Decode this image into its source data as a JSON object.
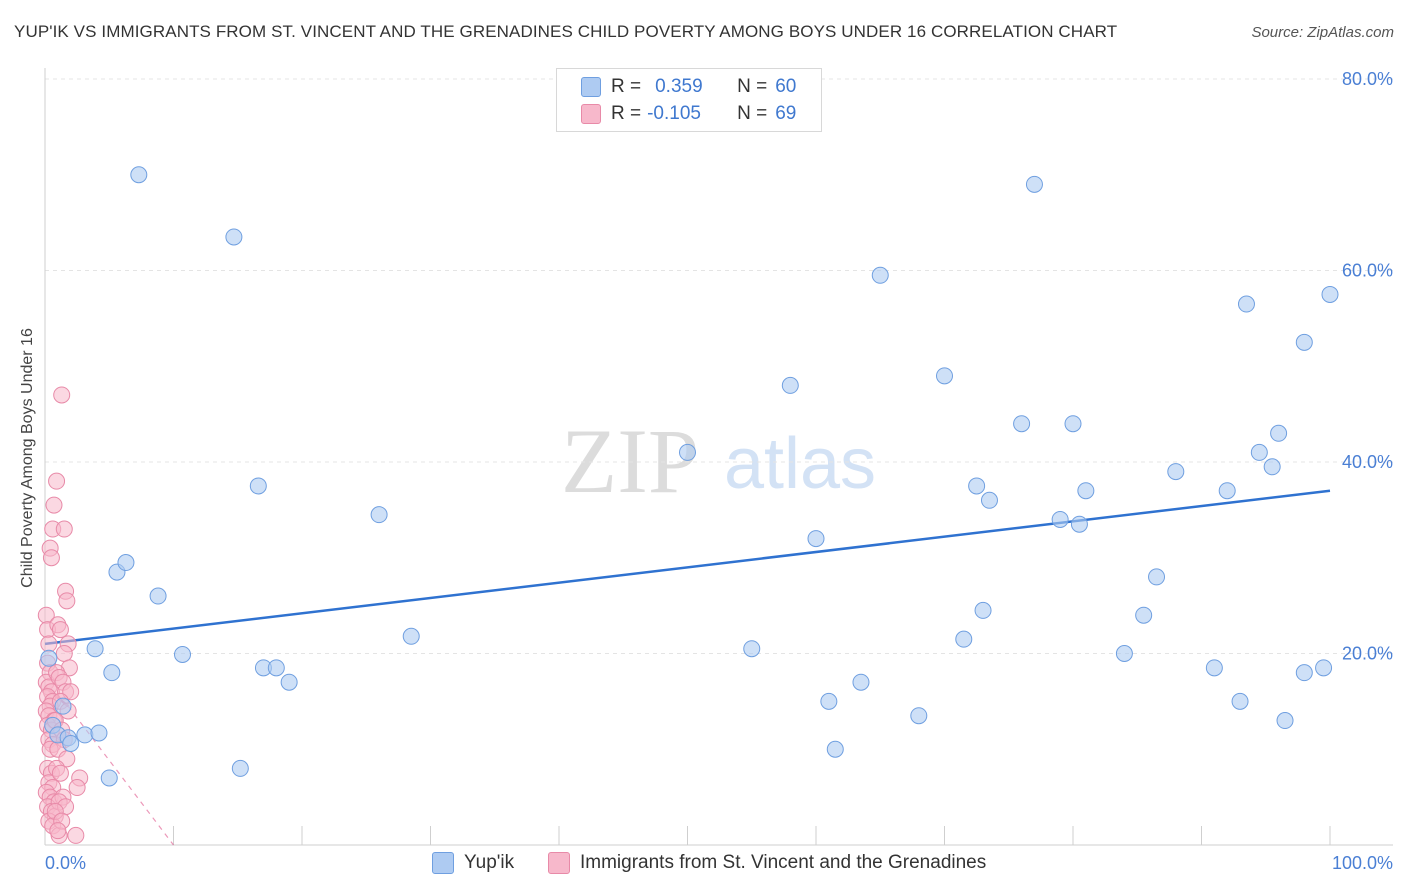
{
  "title": "YUP'IK VS IMMIGRANTS FROM ST. VINCENT AND THE GRENADINES CHILD POVERTY AMONG BOYS UNDER 16 CORRELATION CHART",
  "source": "Source: ZipAtlas.com",
  "watermark": {
    "zip": "ZIP",
    "atlas": "atlas"
  },
  "colors": {
    "blue_fill": "#aecbf2",
    "blue_stroke": "#6f9fe0",
    "blue_line": "#2f72d0",
    "pink_fill": "#f7b8cb",
    "pink_stroke": "#e88aa8",
    "pink_line": "#e0548a",
    "tick_text": "#4a7fd4",
    "grid": "#e4e4e4"
  },
  "legend": {
    "rows": [
      {
        "r_label": "R =",
        "r_value": "0.359",
        "n_label": "N =",
        "n_value": "60"
      },
      {
        "r_label": "R =",
        "r_value": "-0.105",
        "n_label": "N =",
        "n_value": "69"
      }
    ]
  },
  "bottom_legend": {
    "series1": "Yup'ik",
    "series2": "Immigrants from St. Vincent and the Grenadines"
  },
  "chart_data": {
    "type": "scatter",
    "title": "YUP'IK VS IMMIGRANTS FROM ST. VINCENT AND THE GRENADINES CHILD POVERTY AMONG BOYS UNDER 16 CORRELATION CHART",
    "xlabel": "",
    "ylabel": "Child Poverty Among Boys Under 16",
    "xlim": [
      0,
      100
    ],
    "ylim": [
      0,
      80
    ],
    "x_ticks": [
      "0.0%",
      "100.0%"
    ],
    "y_ticks": [
      {
        "value": 20,
        "label": "20.0%"
      },
      {
        "value": 40,
        "label": "40.0%"
      },
      {
        "value": 60,
        "label": "60.0%"
      },
      {
        "value": 80,
        "label": "80.0%"
      }
    ],
    "series": [
      {
        "name": "Yup'ik",
        "R": 0.359,
        "N": 60,
        "trend": {
          "x": [
            0,
            100
          ],
          "y": [
            21.0,
            37.0
          ],
          "style": "solid"
        },
        "points": [
          [
            0.3,
            19.5
          ],
          [
            0.6,
            12.5
          ],
          [
            1.0,
            11.5
          ],
          [
            1.4,
            14.5
          ],
          [
            1.8,
            11.2
          ],
          [
            2.0,
            10.6
          ],
          [
            3.1,
            11.5
          ],
          [
            4.2,
            11.7
          ],
          [
            5.0,
            7.0
          ],
          [
            3.9,
            20.5
          ],
          [
            5.2,
            18.0
          ],
          [
            5.6,
            28.5
          ],
          [
            6.3,
            29.5
          ],
          [
            7.3,
            70.0
          ],
          [
            8.8,
            26.0
          ],
          [
            10.7,
            19.9
          ],
          [
            14.7,
            63.5
          ],
          [
            15.2,
            8.0
          ],
          [
            16.6,
            37.5
          ],
          [
            17.0,
            18.5
          ],
          [
            18.0,
            18.5
          ],
          [
            19.0,
            17.0
          ],
          [
            26.0,
            34.5
          ],
          [
            28.5,
            21.8
          ],
          [
            50.0,
            41.0
          ],
          [
            55.0,
            20.5
          ],
          [
            58.0,
            48.0
          ],
          [
            60.0,
            32.0
          ],
          [
            61.0,
            15.0
          ],
          [
            61.5,
            10.0
          ],
          [
            63.5,
            17.0
          ],
          [
            65.0,
            59.5
          ],
          [
            68.0,
            13.5
          ],
          [
            70.0,
            49.0
          ],
          [
            71.5,
            21.5
          ],
          [
            72.5,
            37.5
          ],
          [
            73.0,
            24.5
          ],
          [
            73.5,
            36.0
          ],
          [
            76.0,
            44.0
          ],
          [
            77.0,
            69.0
          ],
          [
            79.0,
            34.0
          ],
          [
            80.0,
            44.0
          ],
          [
            80.5,
            33.5
          ],
          [
            81.0,
            37.0
          ],
          [
            84.0,
            20.0
          ],
          [
            85.5,
            24.0
          ],
          [
            86.5,
            28.0
          ],
          [
            88.0,
            39.0
          ],
          [
            91.0,
            18.5
          ],
          [
            92.0,
            37.0
          ],
          [
            93.0,
            15.0
          ],
          [
            93.5,
            56.5
          ],
          [
            94.5,
            41.0
          ],
          [
            95.5,
            39.5
          ],
          [
            96.0,
            43.0
          ],
          [
            96.5,
            13.0
          ],
          [
            98.0,
            52.5
          ],
          [
            98.0,
            18.0
          ],
          [
            99.5,
            18.5
          ],
          [
            100.0,
            57.5
          ]
        ]
      },
      {
        "name": "Immigrants from St. Vincent and the Grenadines",
        "R": -0.105,
        "N": 69,
        "trend": {
          "x": [
            0,
            1.8,
            10
          ],
          "y": [
            16.5,
            14.5,
            0
          ],
          "style": "solid-then-dashed"
        },
        "points": [
          [
            0.1,
            24.0
          ],
          [
            0.2,
            22.5
          ],
          [
            0.3,
            21.0
          ],
          [
            0.2,
            19.0
          ],
          [
            0.4,
            18.0
          ],
          [
            0.1,
            17.0
          ],
          [
            0.3,
            16.5
          ],
          [
            0.5,
            16.0
          ],
          [
            0.2,
            15.5
          ],
          [
            0.6,
            15.0
          ],
          [
            0.4,
            14.5
          ],
          [
            0.1,
            14.0
          ],
          [
            0.3,
            13.5
          ],
          [
            0.7,
            13.0
          ],
          [
            0.2,
            12.5
          ],
          [
            0.5,
            12.0
          ],
          [
            0.3,
            11.0
          ],
          [
            0.6,
            10.5
          ],
          [
            0.4,
            10.0
          ],
          [
            0.2,
            8.0
          ],
          [
            0.5,
            7.5
          ],
          [
            0.3,
            6.5
          ],
          [
            0.6,
            6.0
          ],
          [
            0.1,
            5.5
          ],
          [
            0.4,
            5.0
          ],
          [
            0.7,
            4.5
          ],
          [
            0.2,
            4.0
          ],
          [
            0.5,
            3.5
          ],
          [
            0.8,
            3.0
          ],
          [
            0.3,
            2.5
          ],
          [
            0.6,
            2.0
          ],
          [
            1.1,
            1.0
          ],
          [
            0.4,
            31.0
          ],
          [
            0.5,
            30.0
          ],
          [
            0.6,
            33.0
          ],
          [
            0.7,
            35.5
          ],
          [
            0.9,
            38.0
          ],
          [
            1.5,
            33.0
          ],
          [
            1.6,
            26.5
          ],
          [
            1.7,
            25.5
          ],
          [
            1.3,
            47.0
          ],
          [
            1.0,
            23.0
          ],
          [
            1.2,
            22.5
          ],
          [
            1.8,
            21.0
          ],
          [
            1.5,
            20.0
          ],
          [
            1.9,
            18.5
          ],
          [
            0.9,
            18.0
          ],
          [
            1.1,
            17.5
          ],
          [
            1.4,
            17.0
          ],
          [
            1.6,
            16.0
          ],
          [
            2.0,
            16.0
          ],
          [
            1.2,
            15.0
          ],
          [
            1.8,
            14.0
          ],
          [
            0.8,
            13.0
          ],
          [
            1.3,
            12.0
          ],
          [
            1.5,
            11.0
          ],
          [
            1.0,
            10.0
          ],
          [
            1.7,
            9.0
          ],
          [
            0.9,
            8.0
          ],
          [
            1.2,
            7.5
          ],
          [
            2.7,
            7.0
          ],
          [
            2.5,
            6.0
          ],
          [
            1.4,
            5.0
          ],
          [
            1.1,
            4.5
          ],
          [
            1.6,
            4.0
          ],
          [
            0.8,
            3.5
          ],
          [
            1.3,
            2.5
          ],
          [
            2.4,
            1.0
          ],
          [
            1.0,
            1.5
          ]
        ]
      }
    ]
  }
}
